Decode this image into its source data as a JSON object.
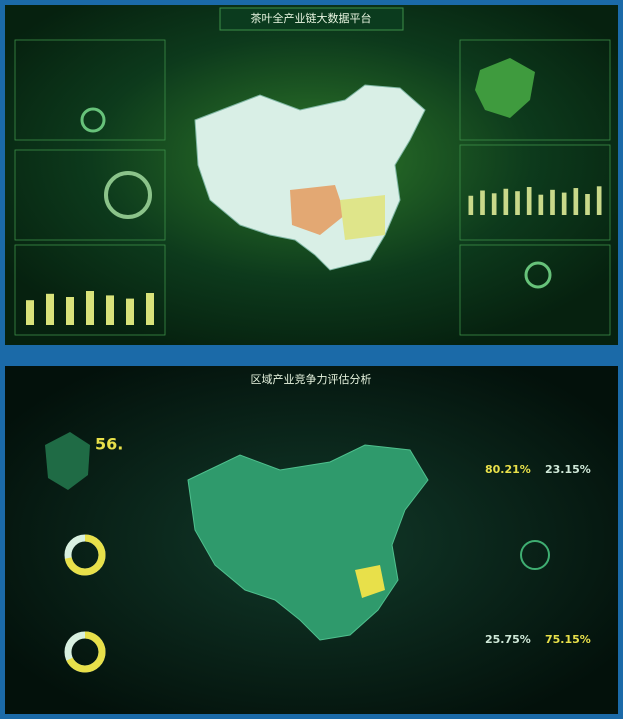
{
  "top": {
    "title": "茶叶全产业链大数据平台",
    "bars_left": {
      "values": [
        62,
        78,
        70,
        85,
        74,
        66,
        80
      ],
      "ylim": [
        0,
        100
      ],
      "color": "#d8e27a"
    },
    "bars_right": {
      "values": [
        55,
        70,
        62,
        75,
        68,
        80,
        58,
        72,
        64,
        77,
        60,
        82
      ],
      "ylim": [
        0,
        100
      ],
      "color": "#c9d98a"
    }
  },
  "bottom": {
    "title": "区域产业竞争力评估分析",
    "stat": "56.",
    "donuts": [
      {
        "value": 72
      },
      {
        "value": 68
      }
    ],
    "kpis": [
      "80.21%",
      "23.15%",
      "25.75%",
      "75.15%"
    ]
  }
}
